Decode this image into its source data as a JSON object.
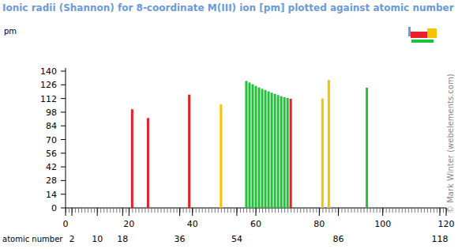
{
  "chart_data": {
    "type": "bar",
    "title": "Ionic radii (Shannon) for 8-coordinate M(III) ion [pm] plotted against atomic number",
    "ylabel": "pm",
    "xlabel": "atomic number",
    "x": [
      21,
      26,
      39,
      49,
      57,
      58,
      59,
      60,
      61,
      62,
      63,
      64,
      65,
      66,
      67,
      68,
      69,
      70,
      71,
      81,
      83,
      95
    ],
    "values": [
      101,
      92,
      116,
      106,
      130,
      128.3,
      126.6,
      124.9,
      123.3,
      121.9,
      120.6,
      119.3,
      118,
      116.7,
      115.5,
      114.4,
      113.4,
      112.5,
      111.7,
      112,
      131,
      123
    ],
    "colors": [
      "#e8202a",
      "#e8202a",
      "#e8202a",
      "#f5c400",
      "#22bf3a",
      "#22bf3a",
      "#22bf3a",
      "#22bf3a",
      "#22bf3a",
      "#22bf3a",
      "#22bf3a",
      "#22bf3a",
      "#22bf3a",
      "#22bf3a",
      "#22bf3a",
      "#22bf3a",
      "#22bf3a",
      "#22bf3a",
      "#e8202a",
      "#f5c400",
      "#f5c400",
      "#22bf3a"
    ],
    "xlim": [
      0,
      120
    ],
    "xticks": [
      0,
      20,
      40,
      60,
      80,
      100,
      120
    ],
    "secondary_xticks": [
      2,
      10,
      18,
      36,
      54,
      86,
      118
    ],
    "ylim": [
      0,
      140
    ],
    "yticks": [
      0,
      14,
      28,
      42,
      56,
      70,
      84,
      98,
      112,
      126,
      140
    ],
    "grid": false,
    "annotations": [
      "© Mark Winter (webelements.com)"
    ]
  }
}
